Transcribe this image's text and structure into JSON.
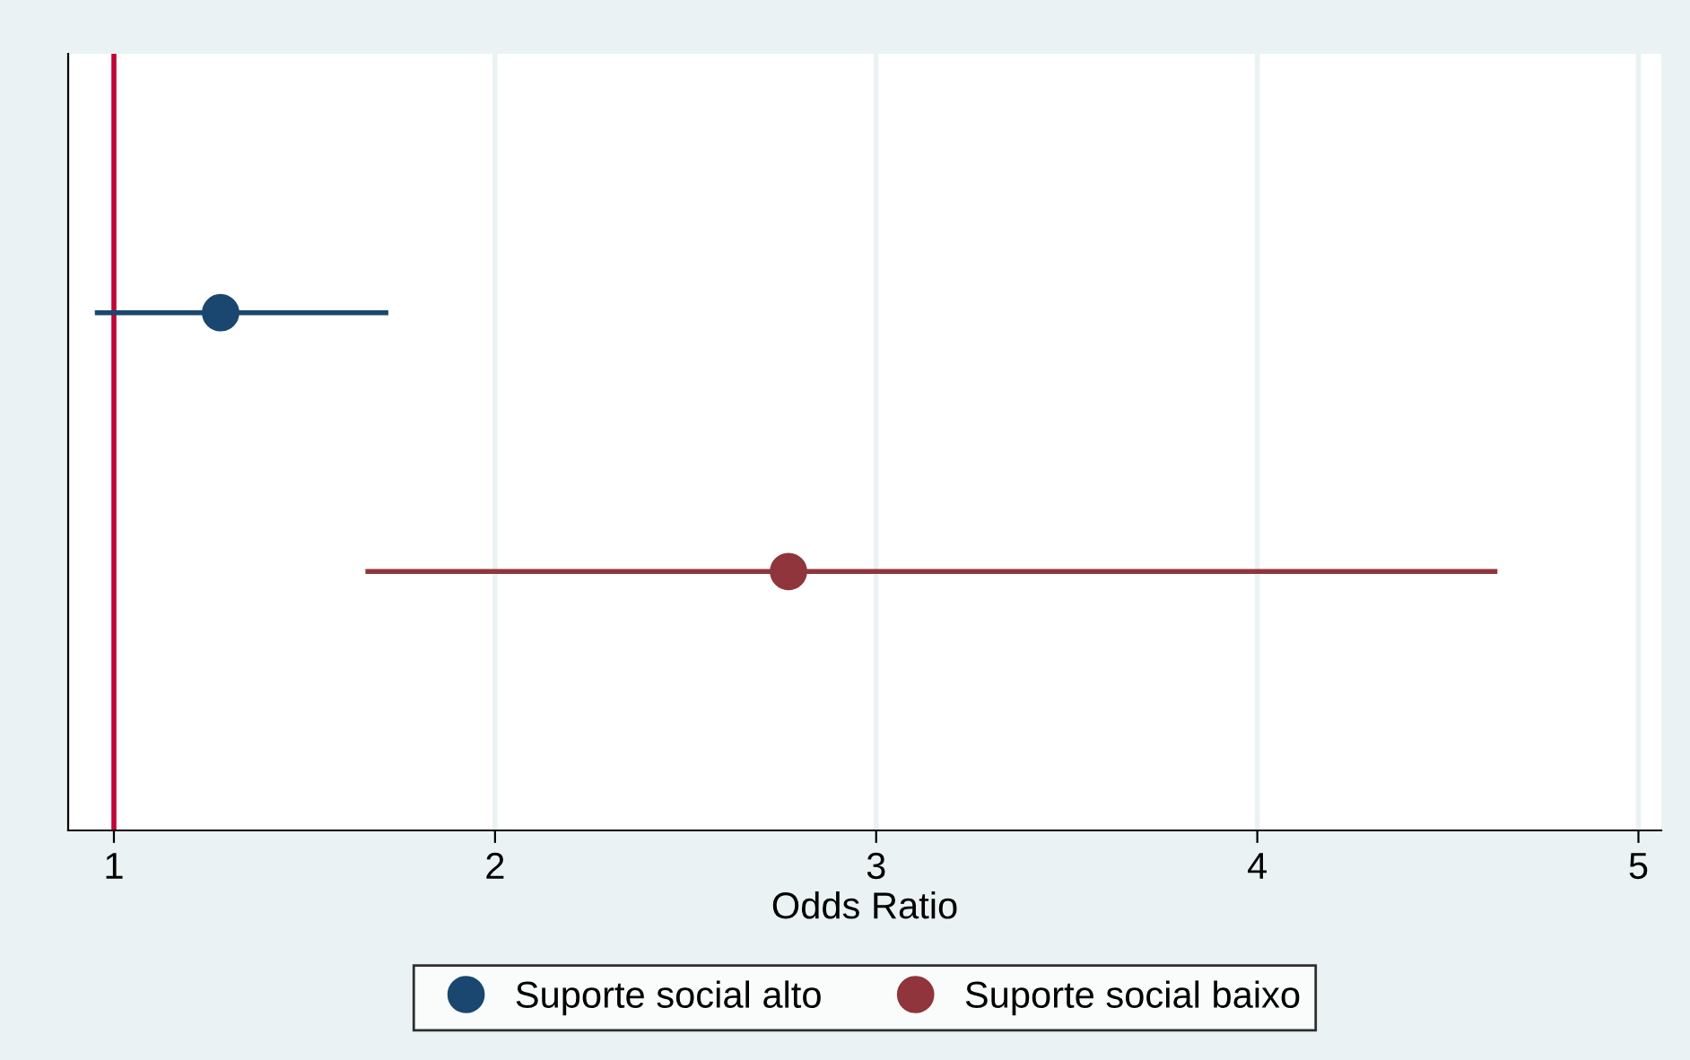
{
  "chart_data": {
    "type": "scatter",
    "orientation": "horizontal",
    "xlabel": "Odds Ratio",
    "categories": [
      null,
      null
    ],
    "series": [
      {
        "name": "Suporte social alto",
        "color": "#1a476f",
        "values": [
          1.28,
          null
        ],
        "errors": [
          [
            0.95,
            1.72
          ],
          null
        ]
      },
      {
        "name": "Suporte social baixo",
        "color": "#90353b",
        "values": [
          null,
          2.77
        ],
        "errors": [
          null,
          [
            1.66,
            4.63
          ]
        ]
      }
    ],
    "xlim": [
      0.88,
      5.06
    ],
    "xticks": [
      1,
      2,
      3,
      4,
      5
    ],
    "ref_lines": [
      {
        "axis": "x",
        "value": 1,
        "color": "#c10534"
      }
    ],
    "grid": "x",
    "legend": "bottom",
    "tick_labels": "x",
    "marker": "circle"
  }
}
